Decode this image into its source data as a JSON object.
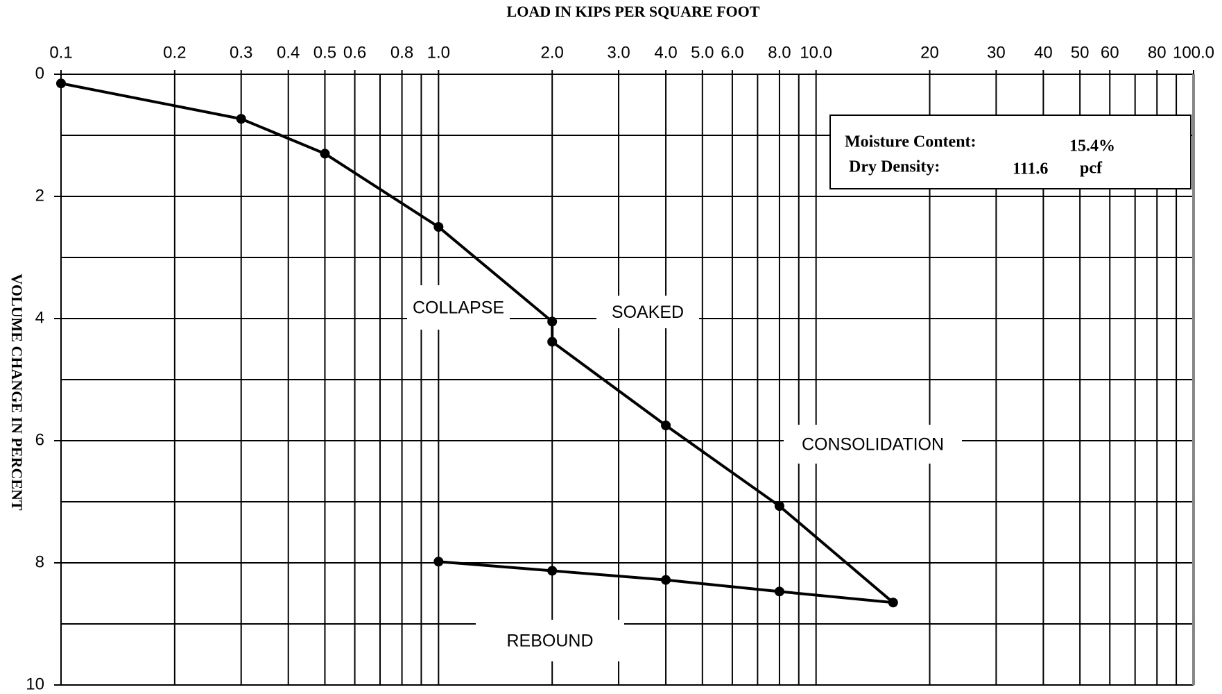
{
  "chart_data": {
    "type": "line",
    "title": "LOAD IN KIPS PER SQUARE FOOT",
    "y_label": "VOLUME CHANGE IN PERCENT",
    "xscale": "log",
    "y_inverted": true,
    "grid": true,
    "xlim": [
      0.1,
      100
    ],
    "ylim": [
      0,
      10
    ],
    "xticks": [
      0.1,
      0.2,
      0.3,
      0.4,
      0.5,
      0.6,
      0.8,
      {
        "value": 1,
        "label": "1.0"
      },
      {
        "value": 2,
        "label": "2.0"
      },
      {
        "value": 3,
        "label": "3.0"
      },
      {
        "value": 4,
        "label": "4.0"
      },
      {
        "value": 5,
        "label": "5.0"
      },
      {
        "value": 6,
        "label": "6.0"
      },
      {
        "value": 8,
        "label": "8.0"
      },
      {
        "value": 10,
        "label": "10.0"
      },
      20,
      30,
      40,
      50,
      60,
      80,
      {
        "value": 100,
        "label": "100.0"
      }
    ],
    "x_minor_grid": [
      0.7,
      0.9,
      7,
      9,
      70,
      90
    ],
    "yticks": [
      0,
      2,
      4,
      6,
      8,
      10
    ],
    "y_minor_grid": [
      1,
      3,
      5,
      7,
      9
    ],
    "series": [
      {
        "color": "#000000",
        "x": [
          0.1,
          0.3,
          0.5,
          1,
          2,
          2,
          4,
          8,
          16,
          8,
          4,
          2,
          1
        ],
        "y": [
          0.15,
          0.73,
          1.3,
          2.5,
          4.05,
          4.38,
          5.75,
          7.07,
          8.65,
          8.47,
          8.28,
          8.13,
          7.98
        ]
      }
    ],
    "annotations": [
      "COLLAPSE",
      "SOAKED",
      "CONSOLIDATION",
      "REBOUND"
    ],
    "info_box": {
      "moisture_label": "Moisture Content:",
      "moisture_value": "15.4%",
      "density_label": "Dry Density:",
      "density_value": "111.6",
      "density_unit": "pcf"
    }
  }
}
